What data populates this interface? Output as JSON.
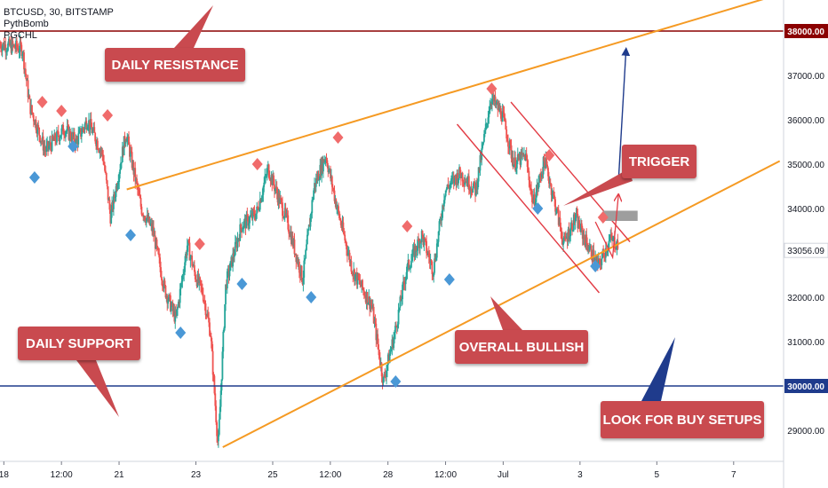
{
  "header": {
    "symbol_line": "BTCUSD, 30, BITSTAMP",
    "indicator_1": "PythBomb",
    "indicator_2": "PGCHL"
  },
  "chart_data": {
    "type": "candlestick",
    "title": "BTCUSD, 30, BITSTAMP",
    "xlabel": "",
    "ylabel": "",
    "y_axis_position": "right",
    "ylim": [
      28300,
      38700
    ],
    "y_ticks": [
      "29000.00",
      "31000.00",
      "32000.00",
      "33056.09",
      "34000.00",
      "35000.00",
      "36000.00",
      "37000.00"
    ],
    "x_ticks": [
      "18",
      "12:00",
      "21",
      "23",
      "25",
      "12:00",
      "28",
      "12:00",
      "Jul",
      "3",
      "5",
      "7"
    ],
    "x_tick_days": [
      18.0,
      19.5,
      21.0,
      23.0,
      25.0,
      26.5,
      28.0,
      29.5,
      31.0,
      33.0,
      35.0,
      37.0
    ],
    "xlim": [
      17.9,
      38.3
    ],
    "price_path": [
      [
        17.9,
        37700
      ],
      [
        18.5,
        37600
      ],
      [
        18.7,
        36300
      ],
      [
        19.1,
        35300
      ],
      [
        19.6,
        35800
      ],
      [
        19.9,
        35500
      ],
      [
        20.2,
        36000
      ],
      [
        20.6,
        35200
      ],
      [
        20.8,
        33800
      ],
      [
        21.2,
        35700
      ],
      [
        21.6,
        34000
      ],
      [
        21.9,
        33500
      ],
      [
        22.2,
        32200
      ],
      [
        22.5,
        31500
      ],
      [
        22.8,
        33200
      ],
      [
        23.0,
        32500
      ],
      [
        23.2,
        32100
      ],
      [
        23.4,
        31200
      ],
      [
        23.6,
        28600
      ],
      [
        23.8,
        32300
      ],
      [
        24.2,
        33600
      ],
      [
        24.6,
        33900
      ],
      [
        24.9,
        34900
      ],
      [
        25.4,
        33700
      ],
      [
        25.8,
        32400
      ],
      [
        26.1,
        34500
      ],
      [
        26.4,
        35200
      ],
      [
        26.7,
        34000
      ],
      [
        27.1,
        32600
      ],
      [
        27.6,
        31800
      ],
      [
        27.9,
        30100
      ],
      [
        28.2,
        31200
      ],
      [
        28.5,
        32600
      ],
      [
        28.9,
        33400
      ],
      [
        29.2,
        32600
      ],
      [
        29.5,
        34400
      ],
      [
        29.9,
        34800
      ],
      [
        30.3,
        34400
      ],
      [
        30.7,
        36500
      ],
      [
        31.0,
        36100
      ],
      [
        31.3,
        35000
      ],
      [
        31.6,
        35200
      ],
      [
        31.8,
        34100
      ],
      [
        32.1,
        35100
      ],
      [
        32.4,
        34000
      ],
      [
        32.6,
        33200
      ],
      [
        32.9,
        33800
      ],
      [
        33.2,
        33200
      ],
      [
        33.5,
        32700
      ],
      [
        33.8,
        33300
      ],
      [
        34.0,
        33200
      ]
    ],
    "series": [
      {
        "name": "Daily Resistance",
        "type": "hline",
        "value": 38000.0
      },
      {
        "name": "Daily Support",
        "type": "hline",
        "value": 30000.0
      },
      {
        "name": "Upper channel line",
        "type": "line",
        "color": "#f59a23",
        "points": [
          [
            21.2,
            34430
          ],
          [
            38.2,
            38830
          ]
        ]
      },
      {
        "name": "Lower channel line",
        "type": "line",
        "color": "#f59a23",
        "points": [
          [
            23.7,
            28620
          ],
          [
            38.2,
            35070
          ]
        ]
      },
      {
        "name": "Descending channel upper",
        "type": "line",
        "color": "#e23b44",
        "points": [
          [
            31.2,
            36400
          ],
          [
            34.3,
            33250
          ]
        ]
      },
      {
        "name": "Descending channel lower",
        "type": "line",
        "color": "#e23b44",
        "points": [
          [
            29.8,
            35900
          ],
          [
            33.5,
            32100
          ]
        ]
      },
      {
        "name": "Projected move",
        "type": "line",
        "color": "#1f3b8c",
        "points": [
          [
            34.0,
            34600
          ],
          [
            34.2,
            37600
          ]
        ]
      }
    ],
    "pivot_highs": [
      [
        19.0,
        36400
      ],
      [
        19.5,
        36200
      ],
      [
        20.7,
        36100
      ],
      [
        23.1,
        33200
      ],
      [
        24.6,
        35000
      ],
      [
        26.7,
        35600
      ],
      [
        28.5,
        33600
      ],
      [
        30.7,
        36700
      ],
      [
        32.2,
        35200
      ],
      [
        33.6,
        33800
      ]
    ],
    "pivot_lows": [
      [
        18.8,
        34700
      ],
      [
        19.8,
        35400
      ],
      [
        21.3,
        33400
      ],
      [
        22.6,
        31200
      ],
      [
        24.2,
        32300
      ],
      [
        26.0,
        32000
      ],
      [
        28.2,
        30100
      ],
      [
        29.6,
        32400
      ],
      [
        31.9,
        34000
      ],
      [
        33.4,
        32700
      ]
    ],
    "last_price": "33056.09",
    "resistance_label": "38000.00",
    "support_label": "30000.00",
    "annotations": [
      "DAILY RESISTANCE",
      "DAILY SUPPORT",
      "OVERALL BULLISH",
      "TRIGGER",
      "LOOK FOR BUY SETUPS"
    ]
  },
  "colors": {
    "up": "#26a69a",
    "down": "#ef5350",
    "resistance": "#8b0000",
    "support": "#1f3b8c",
    "channel": "#f59a23",
    "callout": "#c94a4f",
    "pivot_high": "#f06b6b",
    "pivot_low": "#4a98d6"
  }
}
